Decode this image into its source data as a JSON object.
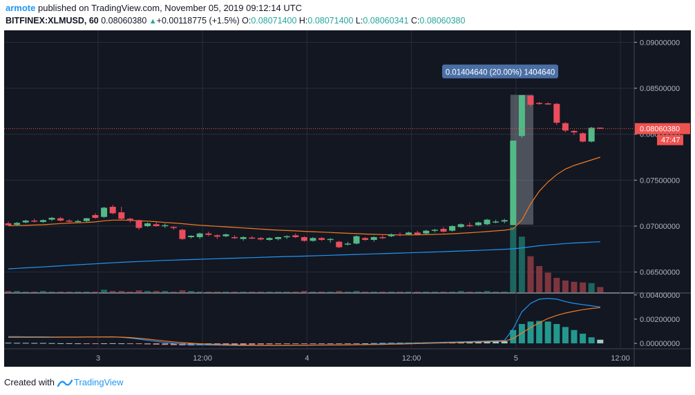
{
  "header": {
    "author": "armote",
    "published_text": "published on TradingView.com, November 05, 2019 09:12:14 UTC",
    "symbol": "BITFINEX:XLMUSD, 60",
    "last": "0.08060380",
    "change_arrow": "▲",
    "change": "+0.00118775 (+1.5%)",
    "open_label": "O:",
    "open": "0.08071400",
    "high_label": "H:",
    "high": "0.08071400",
    "low_label": "L:",
    "low": "0.08060341",
    "close_label": "C:",
    "close": "0.08060380"
  },
  "footer": {
    "created_with": "Created with",
    "brand": "TradingView",
    "logo_icon": "tradingview-logo-icon"
  },
  "colors": {
    "background": "#131722",
    "grid": "#2a2e39",
    "up": "#53b987",
    "down": "#eb4d5c",
    "ma_fast": "#f57c1f",
    "ma_slow": "#2196f3",
    "axis_text": "#b2b5be",
    "price_label": "#ef5350",
    "measure_label": "#4a6fa5"
  },
  "chart_data": {
    "type": "candlestick",
    "symbol": "BITFINEX:XLMUSD",
    "interval": "60",
    "x_ticks": [
      "3",
      "12:00",
      "4",
      "12:00",
      "5",
      "12:00"
    ],
    "price_axis": {
      "ticks": [
        "0.09000000",
        "0.08500000",
        "0.08000000",
        "0.07500000",
        "0.07000000",
        "0.06500000"
      ],
      "ylim": [
        0.0628,
        0.0913
      ]
    },
    "last_price_label": "0.08060380",
    "countdown_label": "47:47",
    "measure_label": "0.01404640 (20.00%) 1404640",
    "candles": [
      {
        "o": 0.0703,
        "h": 0.0705,
        "l": 0.07005,
        "c": 0.0701
      },
      {
        "o": 0.07015,
        "h": 0.07045,
        "l": 0.07,
        "c": 0.07035
      },
      {
        "o": 0.0704,
        "h": 0.0707,
        "l": 0.0703,
        "c": 0.0706
      },
      {
        "o": 0.0706,
        "h": 0.0708,
        "l": 0.0704,
        "c": 0.0705
      },
      {
        "o": 0.07045,
        "h": 0.07075,
        "l": 0.07035,
        "c": 0.07065
      },
      {
        "o": 0.0707,
        "h": 0.071,
        "l": 0.07055,
        "c": 0.0709
      },
      {
        "o": 0.07085,
        "h": 0.071,
        "l": 0.0705,
        "c": 0.0706
      },
      {
        "o": 0.0706,
        "h": 0.07075,
        "l": 0.0704,
        "c": 0.0705
      },
      {
        "o": 0.0705,
        "h": 0.0707,
        "l": 0.07035,
        "c": 0.07055
      },
      {
        "o": 0.07055,
        "h": 0.0709,
        "l": 0.07045,
        "c": 0.07085
      },
      {
        "o": 0.0712,
        "h": 0.0714,
        "l": 0.0708,
        "c": 0.0709
      },
      {
        "o": 0.071,
        "h": 0.0721,
        "l": 0.0709,
        "c": 0.072
      },
      {
        "o": 0.0721,
        "h": 0.0723,
        "l": 0.0713,
        "c": 0.0714
      },
      {
        "o": 0.0715,
        "h": 0.0721,
        "l": 0.0706,
        "c": 0.0708
      },
      {
        "o": 0.0708,
        "h": 0.0709,
        "l": 0.0704,
        "c": 0.0706
      },
      {
        "o": 0.07065,
        "h": 0.0707,
        "l": 0.0696,
        "c": 0.0698
      },
      {
        "o": 0.07,
        "h": 0.0704,
        "l": 0.0699,
        "c": 0.0703
      },
      {
        "o": 0.0702,
        "h": 0.0704,
        "l": 0.06995,
        "c": 0.07
      },
      {
        "o": 0.07005,
        "h": 0.0703,
        "l": 0.0698,
        "c": 0.0701
      },
      {
        "o": 0.0699,
        "h": 0.07,
        "l": 0.0696,
        "c": 0.0698
      },
      {
        "o": 0.0696,
        "h": 0.0697,
        "l": 0.0685,
        "c": 0.0686
      },
      {
        "o": 0.0688,
        "h": 0.069,
        "l": 0.06865,
        "c": 0.06895
      },
      {
        "o": 0.0688,
        "h": 0.0693,
        "l": 0.0686,
        "c": 0.0692
      },
      {
        "o": 0.0692,
        "h": 0.0694,
        "l": 0.0689,
        "c": 0.06905
      },
      {
        "o": 0.069,
        "h": 0.0691,
        "l": 0.0686,
        "c": 0.06885
      },
      {
        "o": 0.0689,
        "h": 0.0692,
        "l": 0.0688,
        "c": 0.0691
      },
      {
        "o": 0.0688,
        "h": 0.069,
        "l": 0.0686,
        "c": 0.0687
      },
      {
        "o": 0.0686,
        "h": 0.0689,
        "l": 0.0684,
        "c": 0.0688
      },
      {
        "o": 0.06875,
        "h": 0.0689,
        "l": 0.0686,
        "c": 0.0687
      },
      {
        "o": 0.0687,
        "h": 0.0688,
        "l": 0.06845,
        "c": 0.06855
      },
      {
        "o": 0.0685,
        "h": 0.0688,
        "l": 0.0684,
        "c": 0.0687
      },
      {
        "o": 0.0686,
        "h": 0.06885,
        "l": 0.06845,
        "c": 0.0688
      },
      {
        "o": 0.0688,
        "h": 0.069,
        "l": 0.0686,
        "c": 0.0689
      },
      {
        "o": 0.069,
        "h": 0.0692,
        "l": 0.0687,
        "c": 0.0688
      },
      {
        "o": 0.0688,
        "h": 0.0689,
        "l": 0.0683,
        "c": 0.0684
      },
      {
        "o": 0.0684,
        "h": 0.0688,
        "l": 0.0683,
        "c": 0.0687
      },
      {
        "o": 0.0687,
        "h": 0.0688,
        "l": 0.0684,
        "c": 0.0685
      },
      {
        "o": 0.0685,
        "h": 0.0687,
        "l": 0.0682,
        "c": 0.0686
      },
      {
        "o": 0.0683,
        "h": 0.0684,
        "l": 0.0676,
        "c": 0.0677
      },
      {
        "o": 0.068,
        "h": 0.0683,
        "l": 0.0679,
        "c": 0.0681
      },
      {
        "o": 0.0681,
        "h": 0.069,
        "l": 0.068,
        "c": 0.0689
      },
      {
        "o": 0.0687,
        "h": 0.0688,
        "l": 0.0684,
        "c": 0.0685
      },
      {
        "o": 0.0685,
        "h": 0.0689,
        "l": 0.0683,
        "c": 0.0688
      },
      {
        "o": 0.0688,
        "h": 0.069,
        "l": 0.0686,
        "c": 0.0687
      },
      {
        "o": 0.0689,
        "h": 0.0692,
        "l": 0.0688,
        "c": 0.0691
      },
      {
        "o": 0.0691,
        "h": 0.0693,
        "l": 0.0689,
        "c": 0.06905
      },
      {
        "o": 0.0691,
        "h": 0.0694,
        "l": 0.069,
        "c": 0.0693
      },
      {
        "o": 0.0693,
        "h": 0.0695,
        "l": 0.069,
        "c": 0.0691
      },
      {
        "o": 0.0692,
        "h": 0.0696,
        "l": 0.0691,
        "c": 0.0695
      },
      {
        "o": 0.0695,
        "h": 0.0697,
        "l": 0.0693,
        "c": 0.0696
      },
      {
        "o": 0.0697,
        "h": 0.0699,
        "l": 0.0693,
        "c": 0.0694
      },
      {
        "o": 0.0695,
        "h": 0.0701,
        "l": 0.0694,
        "c": 0.07
      },
      {
        "o": 0.0699,
        "h": 0.0703,
        "l": 0.0698,
        "c": 0.0702
      },
      {
        "o": 0.0701,
        "h": 0.0704,
        "l": 0.0699,
        "c": 0.07
      },
      {
        "o": 0.0701,
        "h": 0.0705,
        "l": 0.07,
        "c": 0.0704
      },
      {
        "o": 0.0702,
        "h": 0.0708,
        "l": 0.0701,
        "c": 0.0707
      },
      {
        "o": 0.0704,
        "h": 0.0707,
        "l": 0.0703,
        "c": 0.0705
      },
      {
        "o": 0.0705,
        "h": 0.0708,
        "l": 0.0703,
        "c": 0.07065
      },
      {
        "o": 0.0701,
        "h": 0.0793,
        "l": 0.0701,
        "c": 0.0793
      },
      {
        "o": 0.0798,
        "h": 0.08425,
        "l": 0.0796,
        "c": 0.08425
      },
      {
        "o": 0.0842,
        "h": 0.08425,
        "l": 0.083,
        "c": 0.0832
      },
      {
        "o": 0.0834,
        "h": 0.0835,
        "l": 0.0832,
        "c": 0.08335
      },
      {
        "o": 0.08335,
        "h": 0.08345,
        "l": 0.0832,
        "c": 0.08325
      },
      {
        "o": 0.0833,
        "h": 0.0834,
        "l": 0.081,
        "c": 0.08125
      },
      {
        "o": 0.0812,
        "h": 0.0813,
        "l": 0.0802,
        "c": 0.0804
      },
      {
        "o": 0.08035,
        "h": 0.08045,
        "l": 0.0799,
        "c": 0.0802
      },
      {
        "o": 0.0801,
        "h": 0.0802,
        "l": 0.0791,
        "c": 0.0792
      },
      {
        "o": 0.0792,
        "h": 0.0808,
        "l": 0.0791,
        "c": 0.0807
      },
      {
        "o": 0.08071,
        "h": 0.08071,
        "l": 0.0806,
        "c": 0.0806
      }
    ],
    "ma_fast": [
      0.07005,
      0.07006,
      0.07008,
      0.07012,
      0.07015,
      0.07022,
      0.07028,
      0.07033,
      0.07036,
      0.0704,
      0.07046,
      0.07058,
      0.07065,
      0.07066,
      0.07062,
      0.07058,
      0.07054,
      0.07048,
      0.0704,
      0.07034,
      0.07026,
      0.07018,
      0.0701,
      0.07004,
      0.06998,
      0.06992,
      0.06986,
      0.0698,
      0.06974,
      0.06968,
      0.06962,
      0.06956,
      0.06952,
      0.06948,
      0.06943,
      0.06939,
      0.06935,
      0.06931,
      0.06926,
      0.06922,
      0.06918,
      0.06914,
      0.06911,
      0.06908,
      0.06906,
      0.06904,
      0.06904,
      0.06905,
      0.06907,
      0.0691,
      0.06913,
      0.06917,
      0.06922,
      0.06928,
      0.06934,
      0.06941,
      0.06948,
      0.06955,
      0.0697,
      0.07065,
      0.0724,
      0.0738,
      0.0748,
      0.0756,
      0.0762,
      0.0766,
      0.0769,
      0.0772,
      0.0775
    ],
    "ma_slow": [
      0.06535,
      0.0654,
      0.06546,
      0.06551,
      0.06556,
      0.06562,
      0.06568,
      0.06574,
      0.06579,
      0.06585,
      0.0659,
      0.06596,
      0.06601,
      0.06606,
      0.06611,
      0.06615,
      0.06619,
      0.06623,
      0.06627,
      0.0663,
      0.06633,
      0.06636,
      0.06639,
      0.06642,
      0.06645,
      0.06648,
      0.06651,
      0.06654,
      0.06657,
      0.0666,
      0.06663,
      0.06666,
      0.06669,
      0.06671,
      0.06674,
      0.06677,
      0.0668,
      0.06683,
      0.06686,
      0.06689,
      0.06692,
      0.06695,
      0.06698,
      0.06701,
      0.06704,
      0.06707,
      0.0671,
      0.06713,
      0.06716,
      0.06719,
      0.06722,
      0.06726,
      0.06729,
      0.06733,
      0.06736,
      0.0674,
      0.06744,
      0.06748,
      0.06753,
      0.06763,
      0.06775,
      0.06786,
      0.06795,
      0.06803,
      0.0681,
      0.06816,
      0.06821,
      0.06826,
      0.0683
    ],
    "volume": [
      2,
      2,
      1,
      1,
      2,
      1,
      1,
      1,
      1,
      1,
      1,
      4,
      2,
      2,
      1,
      3,
      2,
      2,
      2,
      1,
      3,
      2,
      1,
      1,
      1,
      1,
      1,
      1,
      1,
      1,
      1,
      1,
      1,
      1,
      2,
      1,
      1,
      1,
      2,
      1,
      2,
      1,
      1,
      1,
      1,
      1,
      1,
      1,
      1,
      1,
      1,
      1,
      2,
      1,
      1,
      2,
      1,
      1,
      100,
      85,
      55,
      40,
      30,
      22,
      18,
      16,
      15,
      14,
      8
    ],
    "macd_hist": [
      5e-05,
      4e-05,
      4e-05,
      3e-05,
      3e-05,
      2e-05,
      1e-05,
      1e-05,
      0.0,
      -1e-05,
      -1e-05,
      0.0,
      1e-05,
      0.0,
      -2e-05,
      -5e-05,
      -8e-05,
      -0.0001,
      -0.00012,
      -0.00014,
      -0.00016,
      -0.00017,
      -0.00016,
      -0.00015,
      -0.00014,
      -0.00013,
      -0.00012,
      -0.00011,
      -0.0001,
      -9e-05,
      -8e-05,
      -7e-05,
      -6e-05,
      -5e-05,
      -5e-05,
      -4e-05,
      -3e-05,
      -3e-05,
      -4e-05,
      -3e-05,
      -1e-05,
      0.0,
      2e-05,
      3e-05,
      4e-05,
      5e-05,
      6e-05,
      7e-05,
      8e-05,
      9e-05,
      0.0001,
      0.00012,
      0.00013,
      0.00014,
      0.00015,
      0.00016,
      0.00016,
      0.00017,
      0.0011,
      0.0016,
      0.0018,
      0.00185,
      0.0018,
      0.0016,
      0.00135,
      0.0011,
      0.0008,
      0.0005,
      0.0003
    ],
    "macd_line": [
      0.00055,
      0.00055,
      0.00054,
      0.00054,
      0.00054,
      0.00053,
      0.00053,
      0.00053,
      0.00052,
      0.00052,
      0.00052,
      0.00053,
      0.00054,
      0.0005,
      0.00044,
      0.00035,
      0.00025,
      0.00016,
      8e-05,
      0.0,
      -6e-05,
      -0.0001,
      -0.00012,
      -0.00014,
      -0.00015,
      -0.00016,
      -0.00017,
      -0.00018,
      -0.00018,
      -0.00018,
      -0.00018,
      -0.00017,
      -0.00016,
      -0.00015,
      -0.00015,
      -0.00014,
      -0.00013,
      -0.00012,
      -0.00013,
      -0.00012,
      -0.0001,
      -9e-05,
      -7e-05,
      -5e-05,
      -3e-05,
      -1e-05,
      1e-05,
      3e-05,
      5e-05,
      7e-05,
      9e-05,
      0.00011,
      0.00013,
      0.00015,
      0.00017,
      0.00019,
      0.00021,
      0.00024,
      0.0012,
      0.0026,
      0.0033,
      0.00365,
      0.0037,
      0.00365,
      0.00345,
      0.0033,
      0.0032,
      0.0031,
      0.003
    ],
    "signal_line": [
      0.0005,
      0.0005,
      0.0005,
      0.0005,
      0.0005,
      0.0005,
      0.00051,
      0.00051,
      0.00051,
      0.00052,
      0.00052,
      0.00052,
      0.00053,
      0.00051,
      0.00048,
      0.00042,
      0.00035,
      0.00027,
      0.00019,
      0.00012,
      6e-05,
      1e-05,
      -3e-05,
      -6e-05,
      -9e-05,
      -0.00011,
      -0.00013,
      -0.00015,
      -0.00016,
      -0.00017,
      -0.00017,
      -0.00017,
      -0.00017,
      -0.00016,
      -0.00016,
      -0.00015,
      -0.00015,
      -0.00014,
      -0.00014,
      -0.00013,
      -0.00012,
      -0.00011,
      -0.0001,
      -9e-05,
      -7e-05,
      -6e-05,
      -4e-05,
      -2e-05,
      0.0,
      2e-05,
      4e-05,
      6e-05,
      8e-05,
      0.0001,
      0.00012,
      0.00014,
      0.00016,
      0.00018,
      0.0004,
      0.00085,
      0.0013,
      0.0017,
      0.00205,
      0.0023,
      0.0025,
      0.00265,
      0.00278,
      0.00288,
      0.00295
    ],
    "macd_axis": {
      "ticks": [
        "0.00400000",
        "0.00200000",
        "0.00000000"
      ],
      "ylim": [
        -0.00045,
        0.0041
      ]
    }
  }
}
